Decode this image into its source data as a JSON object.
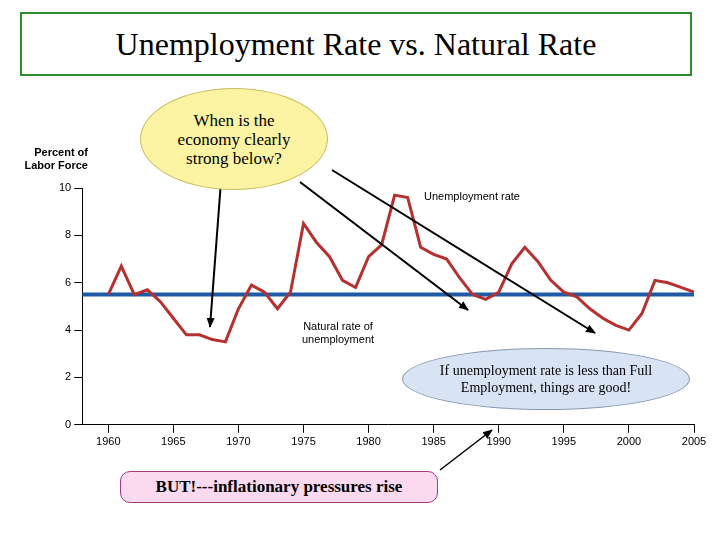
{
  "chart_data": {
    "type": "line",
    "title": "Unemployment Rate vs. Natural Rate",
    "y_label": "Percent of Labor Force",
    "annotations": [
      "When is the economy clearly strong below?",
      "If unemployment rate is less than Full Employment, things are good!",
      "BUT!---inflationary pressures rise"
    ],
    "series": [
      {
        "name": "Unemployment rate",
        "color": "#b5302f",
        "x": [
          1960,
          1961,
          1962,
          1963,
          1964,
          1965,
          1966,
          1967,
          1968,
          1969,
          1970,
          1971,
          1972,
          1973,
          1974,
          1975,
          1976,
          1977,
          1978,
          1979,
          1980,
          1981,
          1982,
          1983,
          1984,
          1985,
          1986,
          1987,
          1988,
          1989,
          1990,
          1991,
          1992,
          1993,
          1994,
          1995,
          1996,
          1997,
          1998,
          1999,
          2000,
          2001,
          2002,
          2003,
          2004,
          2005
        ],
        "values": [
          5.5,
          6.7,
          5.5,
          5.7,
          5.2,
          4.5,
          3.8,
          3.8,
          3.6,
          3.5,
          4.9,
          5.9,
          5.6,
          4.9,
          5.6,
          8.5,
          7.7,
          7.1,
          6.1,
          5.8,
          7.1,
          7.6,
          9.7,
          9.6,
          7.5,
          7.2,
          7.0,
          6.2,
          5.5,
          5.3,
          5.6,
          6.8,
          7.5,
          6.9,
          6.1,
          5.6,
          5.4,
          4.9,
          4.5,
          4.2,
          4.0,
          4.7,
          6.1,
          6.0,
          5.8,
          5.6
        ]
      },
      {
        "name": "Natural rate of unemployment",
        "color": "#1f5aa6",
        "x": [
          1958,
          2005
        ],
        "values": [
          5.5,
          5.5
        ]
      }
    ],
    "xlim": [
      1958,
      2005
    ],
    "xticks": [
      1960,
      1965,
      1970,
      1975,
      1980,
      1985,
      1990,
      1995,
      2000,
      2005
    ],
    "ylim": [
      0,
      10
    ],
    "yticks": [
      0,
      2,
      4,
      6,
      8,
      10
    ],
    "grid": false
  }
}
